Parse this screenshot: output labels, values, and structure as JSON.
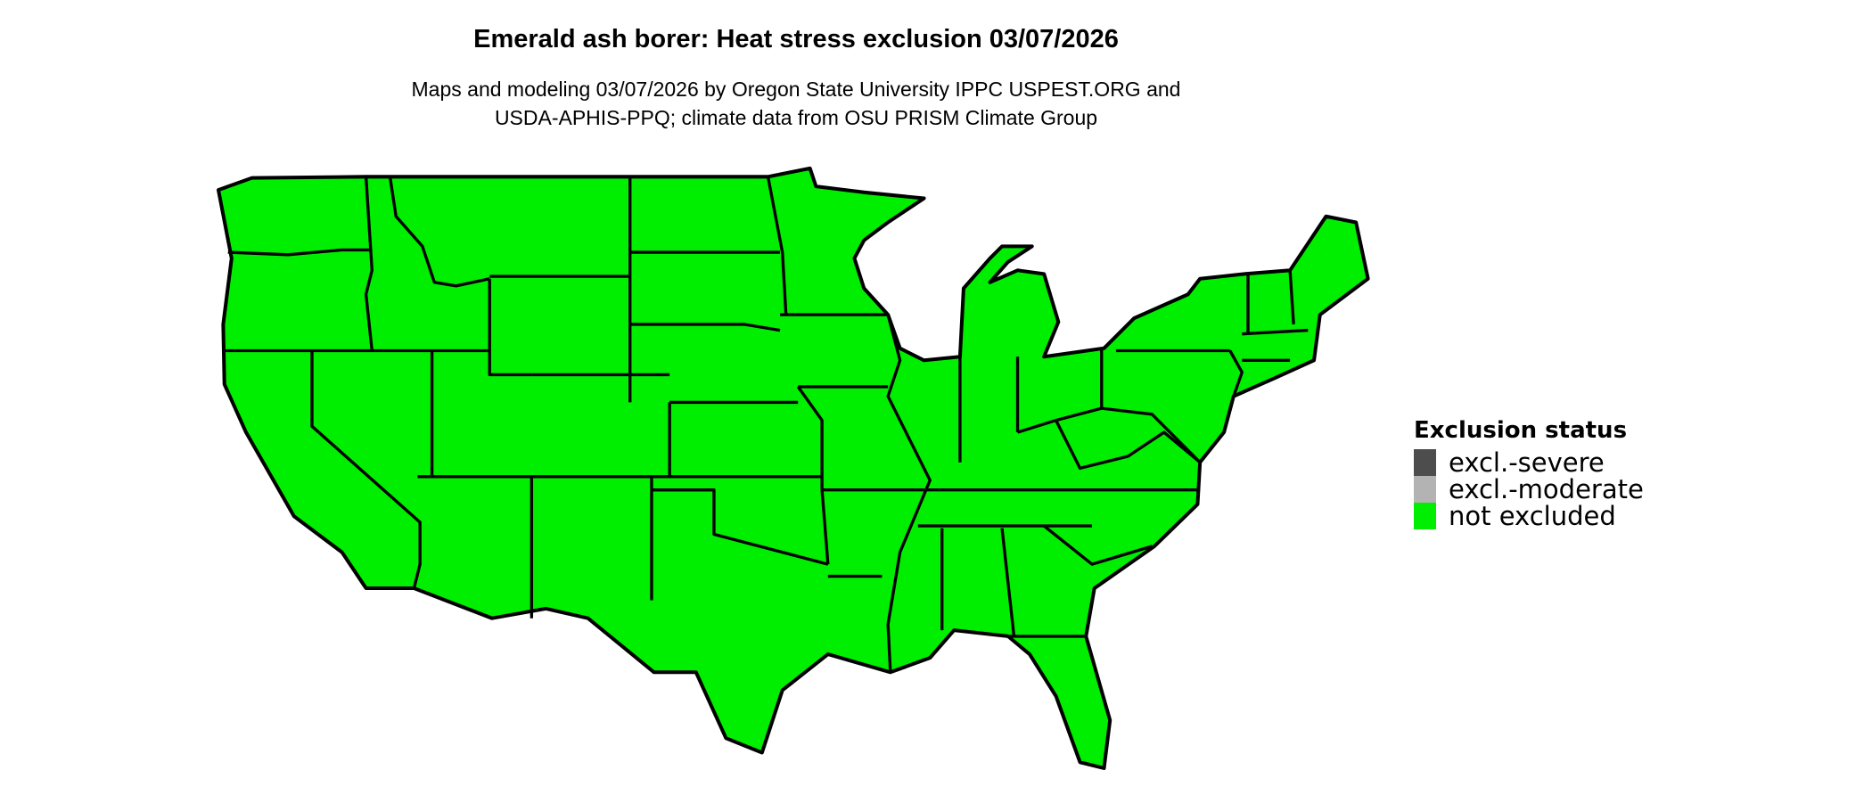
{
  "title": "Emerald ash borer: Heat stress exclusion 03/07/2026",
  "subtitle_lines": [
    "Maps and modeling 03/07/2026 by Oregon State University IPPC USPEST.ORG and",
    "USDA-APHIS-PPQ; climate data from OSU PRISM Climate Group"
  ],
  "map": {
    "region": "Contiguous United States",
    "fill_status": "not excluded",
    "fill_color": "#00EE00",
    "border_color": "#000000"
  },
  "legend": {
    "title": "Exclusion status",
    "items": [
      {
        "label": "excl.-severe",
        "color": "#4D4D4D"
      },
      {
        "label": "excl.-moderate",
        "color": "#B3B3B3"
      },
      {
        "label": "not excluded",
        "color": "#00EE00"
      }
    ]
  }
}
